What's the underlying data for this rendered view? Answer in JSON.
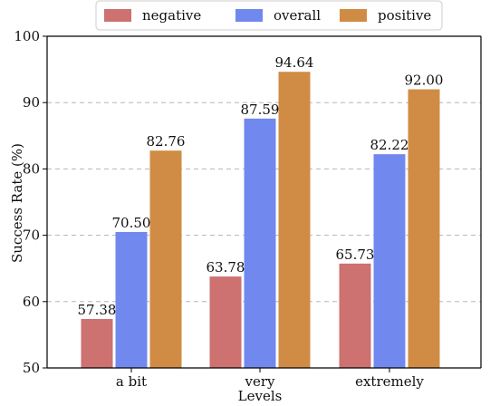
{
  "chart_data": {
    "type": "bar",
    "categories": [
      "a bit",
      "very",
      "extremely"
    ],
    "series": [
      {
        "name": "negative",
        "values": [
          57.38,
          63.78,
          65.73
        ],
        "color": "#cd7171"
      },
      {
        "name": "overall",
        "values": [
          70.5,
          87.59,
          82.22
        ],
        "color": "#7189ee"
      },
      {
        "name": "positive",
        "values": [
          82.76,
          94.64,
          92.0
        ],
        "color": "#d08c44"
      }
    ],
    "value_labels": [
      [
        "57.38",
        "70.50",
        "82.76"
      ],
      [
        "63.78",
        "87.59",
        "94.64"
      ],
      [
        "65.73",
        "82.22",
        "92.00"
      ]
    ],
    "xlabel": "Levels",
    "ylabel": "Success Rate (%)",
    "ylim": [
      50,
      100
    ],
    "yticks": [
      50,
      60,
      70,
      80,
      90,
      100
    ],
    "grid": "horizontal dashed",
    "legend_position": "top-center"
  }
}
